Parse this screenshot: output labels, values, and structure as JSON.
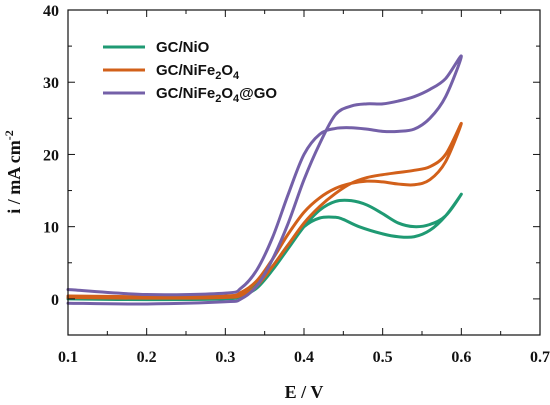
{
  "chart_data": {
    "type": "line",
    "xlabel": "E / V",
    "ylabel": "i / mA cm",
    "ylabel_sup": "-2",
    "xlim": [
      0.1,
      0.7
    ],
    "ylim": [
      -5,
      40
    ],
    "xticks": [
      "0.1",
      "0.2",
      "0.3",
      "0.4",
      "0.5",
      "0.6",
      "0.7"
    ],
    "yticks": [
      "0",
      "10",
      "20",
      "30",
      "40"
    ],
    "grid": false,
    "legend_position": "top-left",
    "series": [
      {
        "name_parts": [
          "GC/NiO"
        ],
        "color": "#1f9a73",
        "x": [
          0.1,
          0.2,
          0.3,
          0.32,
          0.34,
          0.36,
          0.38,
          0.4,
          0.42,
          0.44,
          0.45,
          0.47,
          0.5,
          0.52,
          0.54,
          0.56,
          0.58,
          0.6,
          0.58,
          0.56,
          0.54,
          0.52,
          0.5,
          0.48,
          0.46,
          0.44,
          0.42,
          0.4,
          0.38,
          0.36,
          0.34,
          0.32,
          0.3,
          0.2,
          0.1
        ],
        "y": [
          0.2,
          0.1,
          0.2,
          0.6,
          2.0,
          4.5,
          7.5,
          10.0,
          11.2,
          11.3,
          11.0,
          10.0,
          9.0,
          8.6,
          8.6,
          9.5,
          11.5,
          14.5,
          11.5,
          10.3,
          10.0,
          10.5,
          11.8,
          13.0,
          13.6,
          13.5,
          12.3,
          10.0,
          7.0,
          4.0,
          1.5,
          0.4,
          0.0,
          -0.1,
          0.0
        ]
      },
      {
        "name_parts": [
          "GC/NiFe",
          "2",
          "O",
          "4"
        ],
        "color": "#d2601a",
        "x": [
          0.1,
          0.2,
          0.3,
          0.32,
          0.34,
          0.36,
          0.38,
          0.4,
          0.42,
          0.44,
          0.46,
          0.48,
          0.5,
          0.52,
          0.54,
          0.56,
          0.58,
          0.6,
          0.58,
          0.56,
          0.54,
          0.52,
          0.5,
          0.48,
          0.46,
          0.44,
          0.42,
          0.4,
          0.38,
          0.36,
          0.34,
          0.32,
          0.3,
          0.2,
          0.1
        ],
        "y": [
          0.4,
          0.3,
          0.4,
          0.9,
          2.5,
          5.5,
          9.0,
          12.0,
          14.0,
          15.3,
          16.0,
          16.3,
          16.2,
          15.9,
          15.8,
          16.5,
          19.0,
          24.3,
          20.0,
          18.3,
          17.8,
          17.5,
          17.2,
          16.8,
          16.0,
          14.6,
          12.8,
          10.5,
          7.5,
          4.5,
          1.8,
          0.5,
          0.2,
          0.1,
          0.2
        ]
      },
      {
        "name_parts": [
          "GC/NiFe",
          "2",
          "O",
          "4",
          "@GO"
        ],
        "color": "#7460a8",
        "x": [
          0.1,
          0.2,
          0.3,
          0.32,
          0.34,
          0.36,
          0.38,
          0.4,
          0.42,
          0.44,
          0.46,
          0.48,
          0.5,
          0.52,
          0.54,
          0.56,
          0.58,
          0.6,
          0.58,
          0.56,
          0.54,
          0.52,
          0.5,
          0.48,
          0.46,
          0.44,
          0.42,
          0.4,
          0.38,
          0.36,
          0.34,
          0.32,
          0.3,
          0.2,
          0.1
        ],
        "y": [
          1.3,
          0.6,
          0.8,
          1.5,
          4.0,
          8.5,
          14.5,
          20.0,
          22.8,
          23.6,
          23.7,
          23.5,
          23.2,
          23.2,
          23.5,
          25.0,
          28.0,
          33.6,
          30.5,
          29.0,
          28.0,
          27.4,
          27.0,
          27.0,
          26.7,
          25.5,
          21.5,
          16.5,
          10.5,
          5.5,
          1.8,
          0.0,
          -0.4,
          -0.7,
          -0.6
        ]
      }
    ]
  }
}
